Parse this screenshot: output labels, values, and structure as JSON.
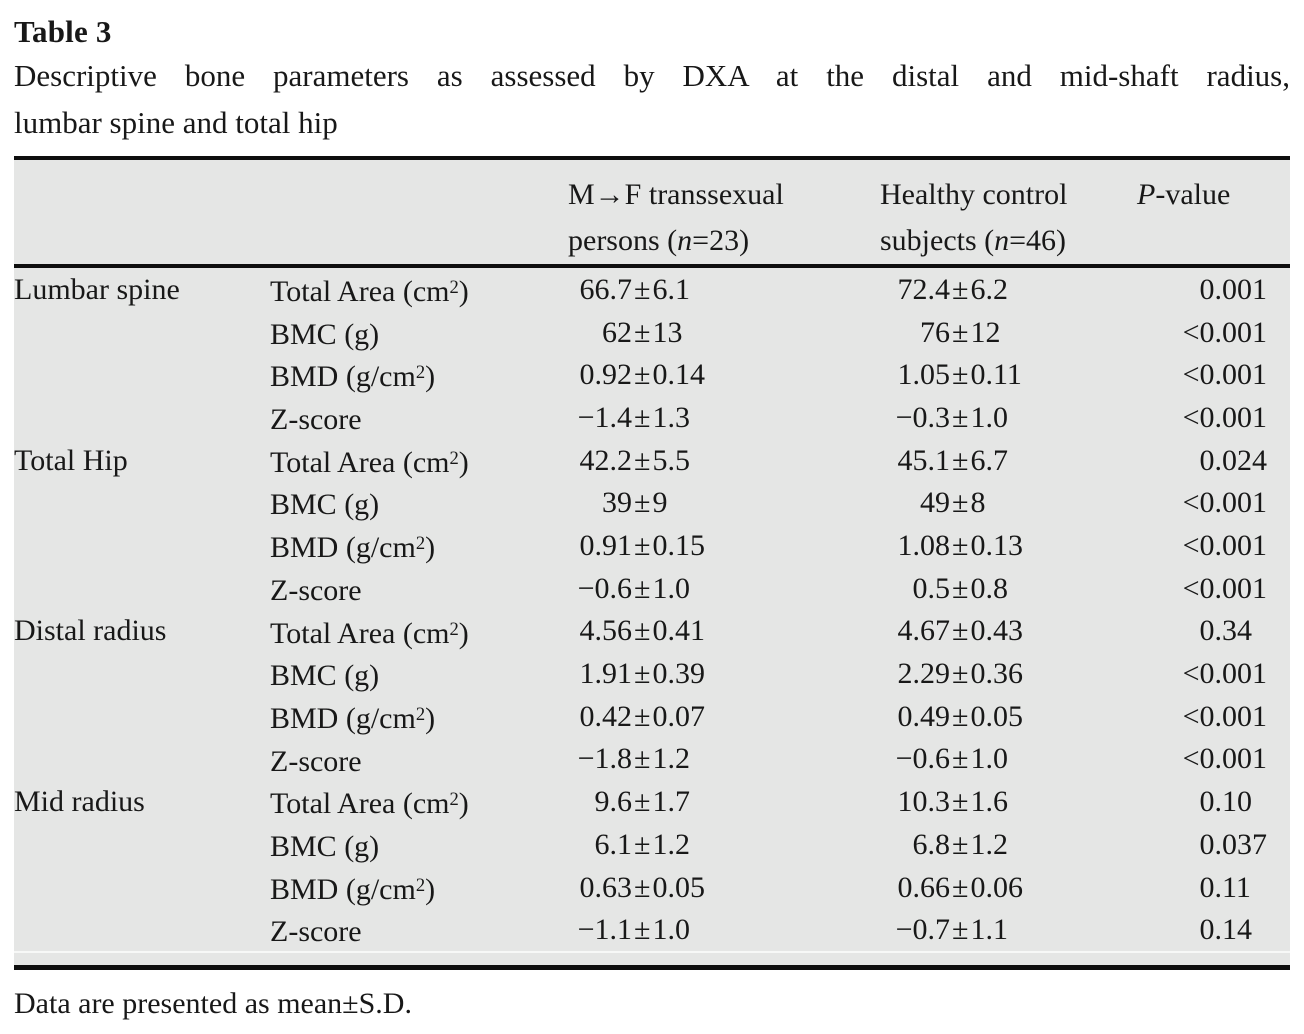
{
  "title": "Table 3",
  "caption_line1": "Descriptive bone parameters as assessed by DXA at the distal and mid-shaft radius,",
  "caption_line2": "lumbar spine and total hip",
  "header": {
    "col3": {
      "line1": "M→F transsexual",
      "line2_pre": "persons (",
      "line2_var": "n",
      "line2_post": "=23)"
    },
    "col4": {
      "line1": "Healthy control",
      "line2_pre": "subjects (",
      "line2_var": "n",
      "line2_post": "=46)"
    },
    "col5": {
      "var": "P",
      "rest": "-value"
    }
  },
  "rows": [
    {
      "site": "Lumbar spine",
      "param_pre": "Total Area (cm",
      "param_sup": "2",
      "param_post": ")",
      "g1_mean": "66.7",
      "g1_sd": "6.1",
      "g2_mean": "72.4",
      "g2_sd": "6.2",
      "p_pre": "0",
      "p_frac": "001"
    },
    {
      "site": "",
      "param_pre": "BMC (g)",
      "param_sup": "",
      "param_post": "",
      "g1_mean": "62",
      "g1_sd": "13",
      "g2_mean": "76",
      "g2_sd": "12",
      "p_pre": "<0",
      "p_frac": "001"
    },
    {
      "site": "",
      "param_pre": "BMD (g/cm",
      "param_sup": "2",
      "param_post": ")",
      "g1_mean": "0.92",
      "g1_sd": "0.14",
      "g2_mean": "1.05",
      "g2_sd": "0.11",
      "p_pre": "<0",
      "p_frac": "001"
    },
    {
      "site": "",
      "param_pre": "Z-score",
      "param_sup": "",
      "param_post": "",
      "g1_mean": "−1.4",
      "g1_sd": "1.3",
      "g2_mean": "−0.3",
      "g2_sd": "1.0",
      "p_pre": "<0",
      "p_frac": "001"
    },
    {
      "site": "Total Hip",
      "param_pre": "Total Area (cm",
      "param_sup": "2",
      "param_post": ")",
      "g1_mean": "42.2",
      "g1_sd": "5.5",
      "g2_mean": "45.1",
      "g2_sd": "6.7",
      "p_pre": "0",
      "p_frac": "024"
    },
    {
      "site": "",
      "param_pre": "BMC (g)",
      "param_sup": "",
      "param_post": "",
      "g1_mean": "39",
      "g1_sd": "9",
      "g2_mean": "49",
      "g2_sd": "8",
      "p_pre": "<0",
      "p_frac": "001"
    },
    {
      "site": "",
      "param_pre": "BMD (g/cm",
      "param_sup": "2",
      "param_post": ")",
      "g1_mean": "0.91",
      "g1_sd": "0.15",
      "g2_mean": "1.08",
      "g2_sd": "0.13",
      "p_pre": "<0",
      "p_frac": "001"
    },
    {
      "site": "",
      "param_pre": "Z-score",
      "param_sup": "",
      "param_post": "",
      "g1_mean": "−0.6",
      "g1_sd": "1.0",
      "g2_mean": "0.5",
      "g2_sd": "0.8",
      "p_pre": "<0",
      "p_frac": "001"
    },
    {
      "site": "Distal radius",
      "param_pre": "Total Area (cm",
      "param_sup": "2",
      "param_post": ")",
      "g1_mean": "4.56",
      "g1_sd": "0.41",
      "g2_mean": "4.67",
      "g2_sd": "0.43",
      "p_pre": "0",
      "p_frac": "34"
    },
    {
      "site": "",
      "param_pre": "BMC (g)",
      "param_sup": "",
      "param_post": "",
      "g1_mean": "1.91",
      "g1_sd": "0.39",
      "g2_mean": "2.29",
      "g2_sd": "0.36",
      "p_pre": "<0",
      "p_frac": "001"
    },
    {
      "site": "",
      "param_pre": "BMD (g/cm",
      "param_sup": "2",
      "param_post": ")",
      "g1_mean": "0.42",
      "g1_sd": "0.07",
      "g2_mean": "0.49",
      "g2_sd": "0.05",
      "p_pre": "<0",
      "p_frac": "001"
    },
    {
      "site": "",
      "param_pre": "Z-score",
      "param_sup": "",
      "param_post": "",
      "g1_mean": "−1.8",
      "g1_sd": "1.2",
      "g2_mean": "−0.6",
      "g2_sd": "1.0",
      "p_pre": "<0",
      "p_frac": "001"
    },
    {
      "site": "Mid radius",
      "param_pre": "Total Area (cm",
      "param_sup": "2",
      "param_post": ")",
      "g1_mean": "9.6",
      "g1_sd": "1.7",
      "g2_mean": "10.3",
      "g2_sd": "1.6",
      "p_pre": "0",
      "p_frac": "10"
    },
    {
      "site": "",
      "param_pre": "BMC (g)",
      "param_sup": "",
      "param_post": "",
      "g1_mean": "6.1",
      "g1_sd": "1.2",
      "g2_mean": "6.8",
      "g2_sd": "1.2",
      "p_pre": "0",
      "p_frac": "037"
    },
    {
      "site": "",
      "param_pre": "BMD (g/cm",
      "param_sup": "2",
      "param_post": ")",
      "g1_mean": "0.63",
      "g1_sd": "0.05",
      "g2_mean": "0.66",
      "g2_sd": "0.06",
      "p_pre": "0",
      "p_frac": "11"
    },
    {
      "site": "",
      "param_pre": "Z-score",
      "param_sup": "",
      "param_post": "",
      "g1_mean": "−1.1",
      "g1_sd": "1.0",
      "g2_mean": "−0.7",
      "g2_sd": "1.1",
      "p_pre": "0",
      "p_frac": "14"
    }
  ],
  "footnote": "Data are presented as mean±S.D.",
  "colors": {
    "table_background": "#e5e6e5",
    "rule": "#0e0e0e",
    "text": "#181818",
    "page_background": "#ffffff"
  }
}
